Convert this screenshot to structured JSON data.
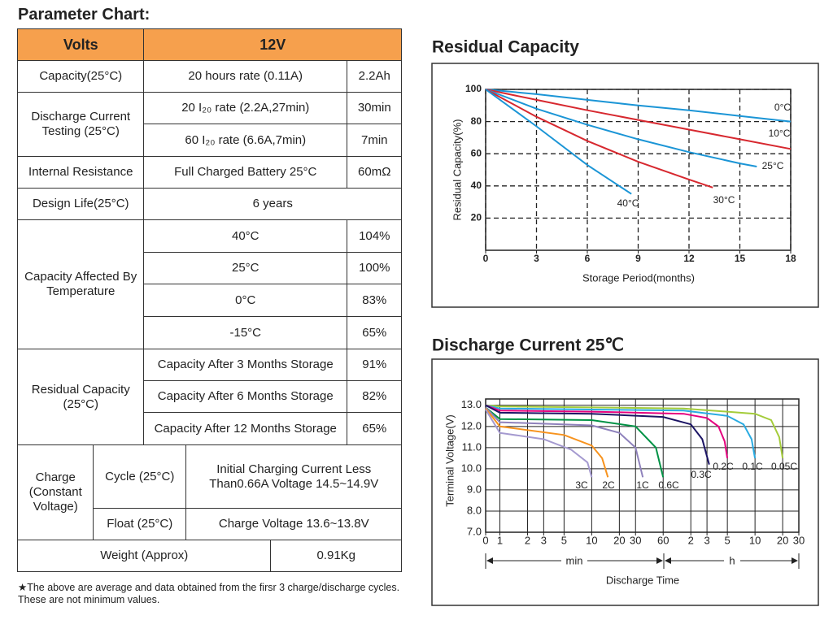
{
  "table": {
    "title": "Parameter Chart:",
    "header": [
      "Volts",
      "12V"
    ],
    "rows": [
      [
        "Capacity(25°C)",
        "20 hours rate (0.11A)",
        "2.2Ah"
      ],
      [
        "Discharge Current Testing (25°C)",
        "20  I₂₀ rate (2.2A,27min)",
        "30min"
      ],
      [
        "60  I₂₀ rate (6.6A,7min)",
        "7min"
      ],
      [
        "Internal Resistance",
        "Full Charged Battery 25°C",
        "60mΩ"
      ],
      [
        "Design Life(25°C)",
        "6 years"
      ],
      [
        "Capacity Affected By Temperature",
        "40°C",
        "104%"
      ],
      [
        "25°C",
        "100%"
      ],
      [
        "0°C",
        "83%"
      ],
      [
        "-15°C",
        "65%"
      ],
      [
        "Residual Capacity (25°C)",
        "Capacity After 3 Months Storage",
        "91%"
      ],
      [
        "Capacity After 6 Months Storage",
        "82%"
      ],
      [
        "Capacity After 12 Months Storage",
        "65%"
      ],
      [
        "Charge (Constant Voltage)",
        "Cycle (25°C)",
        "Initial Charging Current Less Than0.66A Voltage 14.5~14.9V"
      ],
      [
        "Float (25°C)",
        "Charge Voltage 13.6~13.8V"
      ],
      [
        "Weight (Approx)",
        "0.91Kg"
      ]
    ],
    "footnote": "★The above are average and data obtained from the firsr 3 charge/discharge cycles. These are not minimum values."
  },
  "chart_data": [
    {
      "type": "line",
      "title": "Residual Capacity",
      "x_label": "Storage Period(months)",
      "y_label": "Residual Capacity(%)",
      "xlim": [
        0,
        18
      ],
      "xticks": [
        0,
        3,
        6,
        9,
        12,
        15,
        18
      ],
      "ylim": [
        0,
        100
      ],
      "yticks": [
        20,
        40,
        60,
        80,
        100
      ],
      "grid": true,
      "grid_style": "dashed",
      "series": [
        {
          "name": "0°C",
          "color": "#1b95d6",
          "x": [
            0,
            3,
            6,
            9,
            12,
            15,
            18
          ],
          "values": [
            100,
            97,
            93.5,
            90,
            87,
            83.5,
            80
          ]
        },
        {
          "name": "10°C",
          "color": "#d7282f",
          "x": [
            0,
            3,
            6,
            9,
            12,
            15,
            18
          ],
          "values": [
            100,
            93.5,
            87,
            81,
            75,
            69,
            63
          ]
        },
        {
          "name": "25°C",
          "color": "#1b95d6",
          "x": [
            0,
            3,
            6,
            9,
            12,
            15,
            16
          ],
          "values": [
            100,
            88,
            78,
            69,
            61,
            54,
            52
          ]
        },
        {
          "name": "30°C",
          "color": "#d7282f",
          "x": [
            0,
            3,
            6,
            9,
            12,
            13.4
          ],
          "values": [
            100,
            83,
            68,
            55,
            44,
            39
          ]
        },
        {
          "name": "40°C",
          "color": "#1b95d6",
          "x": [
            0,
            3,
            6,
            8.6
          ],
          "values": [
            100,
            77,
            53,
            35
          ]
        }
      ]
    },
    {
      "type": "line",
      "title": "Discharge Current 25℃",
      "x_label": "Discharge Time",
      "x_units": [
        "min",
        "h"
      ],
      "y_label": "Terminal Voltage(V)",
      "log_x": true,
      "xlim": [
        0.7,
        1800
      ],
      "xticks": [
        {
          "value": 0.7,
          "label": "0"
        },
        1,
        2,
        3,
        5,
        10,
        20,
        30,
        60,
        {
          "value": 120,
          "label": "2"
        },
        {
          "value": 180,
          "label": "3"
        },
        {
          "value": 300,
          "label": "5"
        },
        {
          "value": 600,
          "label": "10"
        },
        {
          "value": 1200,
          "label": "20"
        },
        {
          "value": 1800,
          "label": "30"
        }
      ],
      "ylim": [
        7,
        13.3
      ],
      "yticks": [
        {
          "value": 7,
          "label": "7.0"
        },
        {
          "value": 8,
          "label": "8.0"
        },
        {
          "value": 9,
          "label": "9.0"
        },
        {
          "value": 10,
          "label": "10.0"
        },
        {
          "value": 11,
          "label": "11.0"
        },
        {
          "value": 12,
          "label": "12.0"
        },
        {
          "value": 13,
          "label": "13.0"
        }
      ],
      "grid": true,
      "grid_style": "solid",
      "series": [
        {
          "name": "0.05C",
          "color": "#a4cc3a",
          "x": [
            0.7,
            1,
            10,
            100,
            600,
            900,
            1100,
            1200
          ],
          "values": [
            13.0,
            12.95,
            12.9,
            12.85,
            12.6,
            12.3,
            11.5,
            10.5
          ]
        },
        {
          "name": "0.1C",
          "color": "#29abe2",
          "x": [
            0.7,
            1,
            10,
            100,
            300,
            450,
            550,
            600
          ],
          "values": [
            13.0,
            12.85,
            12.8,
            12.75,
            12.5,
            12.1,
            11.4,
            10.5
          ]
        },
        {
          "name": "0.2C",
          "color": "#e5007e",
          "x": [
            0.7,
            1,
            10,
            100,
            180,
            240,
            280,
            300
          ],
          "values": [
            13.0,
            12.75,
            12.7,
            12.6,
            12.4,
            12.0,
            11.3,
            10.5
          ]
        },
        {
          "name": "0.3C",
          "color": "#1b1464",
          "x": [
            0.7,
            1,
            10,
            60,
            120,
            160,
            190
          ],
          "values": [
            13.0,
            12.65,
            12.6,
            12.45,
            12.1,
            11.4,
            10.2
          ]
        },
        {
          "name": "0.6C",
          "color": "#009245",
          "x": [
            0.7,
            1,
            10,
            30,
            50,
            60
          ],
          "values": [
            12.9,
            12.35,
            12.3,
            12.0,
            11.0,
            9.6
          ]
        },
        {
          "name": "1C",
          "color": "#8f82bc",
          "x": [
            0.7,
            1,
            10,
            20,
            30,
            36
          ],
          "values": [
            12.9,
            12.2,
            12.05,
            11.7,
            11.0,
            9.6
          ]
        },
        {
          "name": "2C",
          "color": "#f7931e",
          "x": [
            0.7,
            1,
            5,
            10,
            13,
            15
          ],
          "values": [
            12.85,
            12.0,
            11.6,
            11.1,
            10.5,
            9.6
          ]
        },
        {
          "name": "3C",
          "color": "#a59ad0",
          "x": [
            0.7,
            1,
            3,
            6,
            9,
            10
          ],
          "values": [
            12.8,
            11.7,
            11.4,
            10.9,
            10.3,
            9.6
          ]
        }
      ]
    }
  ]
}
